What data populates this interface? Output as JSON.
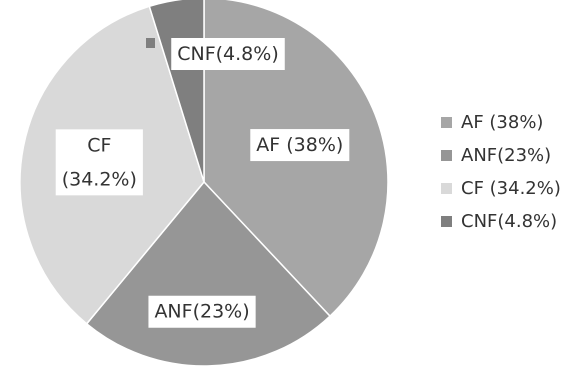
{
  "chart_data": {
    "type": "pie",
    "title": "",
    "legend_position": "right",
    "slices": [
      {
        "name": "AF  (38%)",
        "value": 38,
        "color": "#a6a6a6",
        "label": "AF  (38%)"
      },
      {
        "name": "ANF(23%)",
        "value": 23,
        "color": "#969696",
        "label": "ANF(23%)"
      },
      {
        "name": "CF  (34.2%)",
        "value": 34.2,
        "color": "#d9d9d9",
        "label": [
          "CF",
          "(34.2%)"
        ]
      },
      {
        "name": "CNF(4.8%)",
        "value": 4.8,
        "color": "#7f7f7f",
        "label": "CNF(4.8%)"
      }
    ]
  }
}
